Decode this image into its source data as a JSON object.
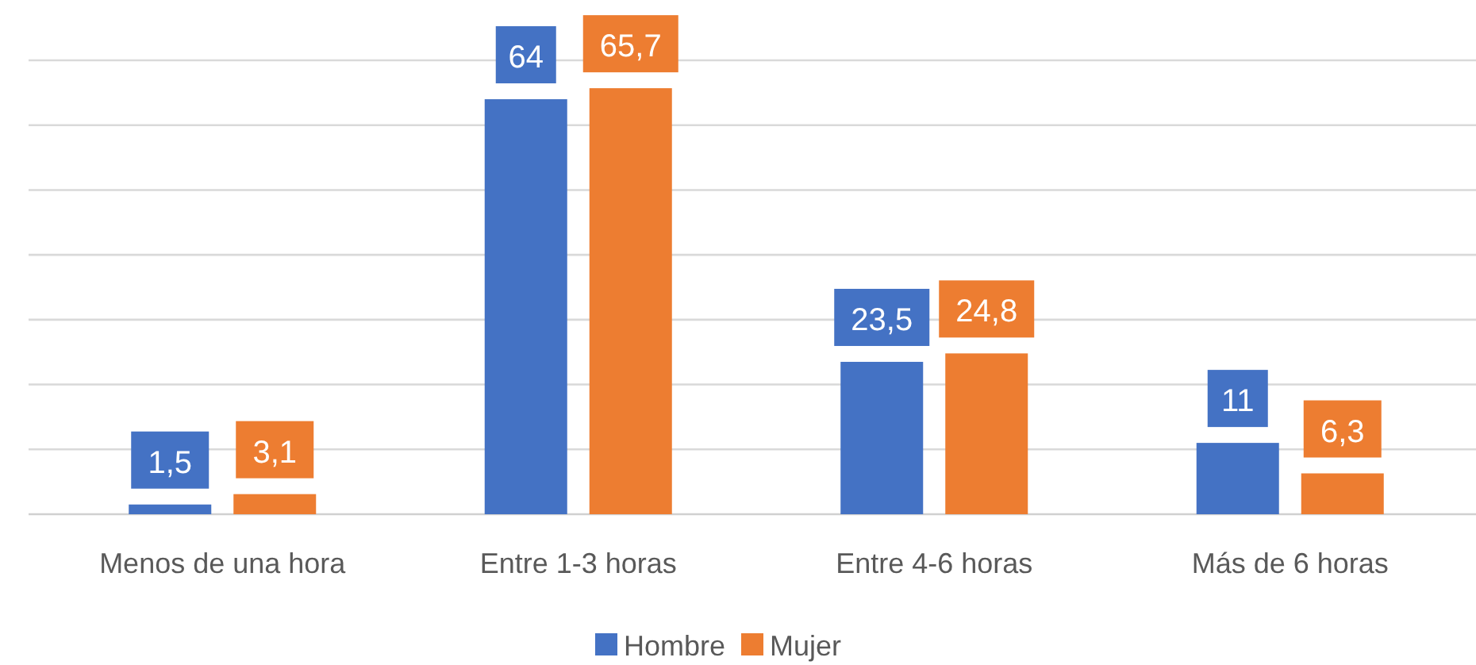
{
  "chart_data": {
    "type": "bar",
    "categories": [
      "Menos de una hora",
      "Entre 1-3 horas",
      "Entre 4-6 horas",
      "Más de 6 horas"
    ],
    "series": [
      {
        "name": "Hombre",
        "color": "#4472c4",
        "values": [
          1.5,
          64,
          23.5,
          11
        ],
        "value_labels": [
          "1,5",
          "64",
          "23,5",
          "11"
        ]
      },
      {
        "name": "Mujer",
        "color": "#ed7d31",
        "values": [
          3.1,
          65.7,
          24.8,
          6.3
        ],
        "value_labels": [
          "3,1",
          "65,7",
          "24,8",
          "6,3"
        ]
      }
    ],
    "ylim": [
      0,
      70
    ],
    "yticks": [
      {
        "value": 0,
        "label": null
      },
      {
        "value": 10,
        "label": null
      },
      {
        "value": 20,
        "label": null
      },
      {
        "value": 30,
        "label": null
      },
      {
        "value": 40,
        "label": null
      },
      {
        "value": 50,
        "label": null
      },
      {
        "value": 60,
        "label": null
      },
      {
        "value": 70,
        "label": null
      }
    ],
    "tick_labels": "x",
    "grid": "y",
    "legend": "bottom"
  }
}
